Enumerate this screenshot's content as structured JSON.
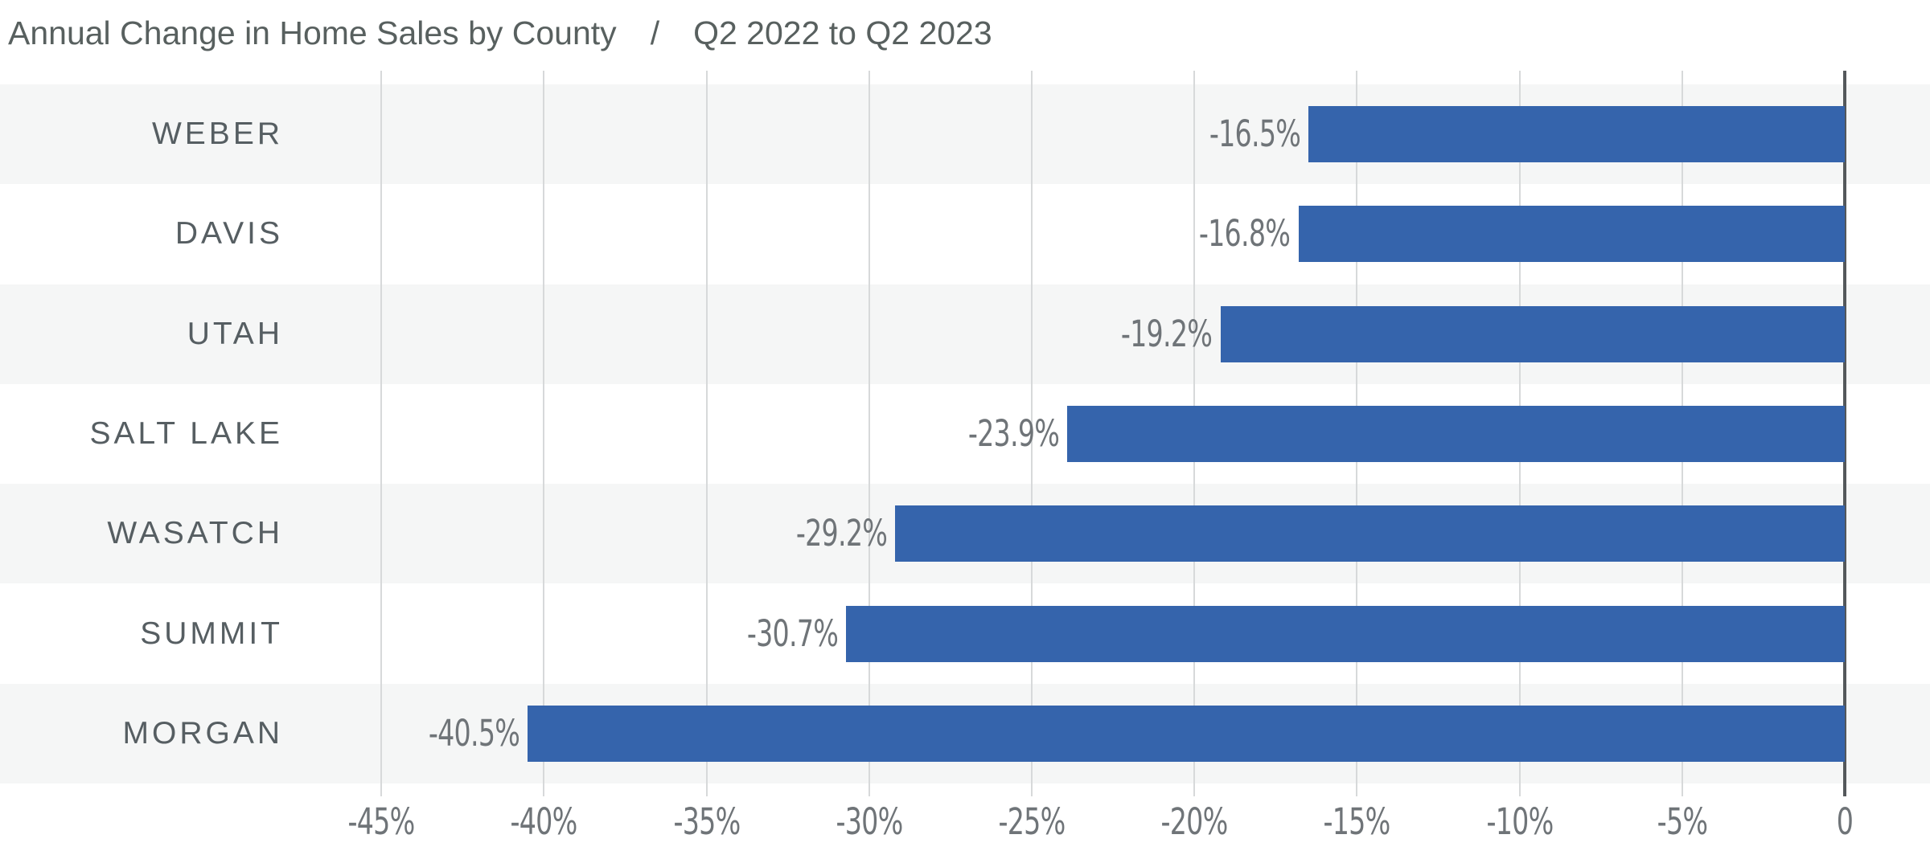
{
  "title": {
    "main": "Annual Change in Home Sales by County",
    "separator": "/",
    "subtitle": "Q2 2022 to Q2 2023"
  },
  "chart_data": {
    "type": "bar",
    "orientation": "horizontal",
    "title": "Annual Change in Home Sales by County / Q2 2022 to Q2 2023",
    "categories": [
      "WEBER",
      "DAVIS",
      "UTAH",
      "SALT LAKE",
      "WASATCH",
      "SUMMIT",
      "MORGAN"
    ],
    "values": [
      -16.5,
      -16.8,
      -19.2,
      -23.9,
      -29.2,
      -30.7,
      -40.5
    ],
    "value_labels": [
      "-16.5%",
      "-16.8%",
      "-19.2%",
      "-23.9%",
      "-29.2%",
      "-30.7%",
      "-40.5%"
    ],
    "xlabel": "",
    "ylabel": "",
    "xlim": [
      -47.5,
      0
    ],
    "x_ticks": [
      {
        "value": -45,
        "label": "-45%"
      },
      {
        "value": -40,
        "label": "-40%"
      },
      {
        "value": -35,
        "label": "-35%"
      },
      {
        "value": -30,
        "label": "-30%"
      },
      {
        "value": -25,
        "label": "-25%"
      },
      {
        "value": -20,
        "label": "-20%"
      },
      {
        "value": -15,
        "label": "-15%"
      },
      {
        "value": -10,
        "label": "-10%"
      },
      {
        "value": -5,
        "label": "-5%"
      },
      {
        "value": 0,
        "label": "0"
      }
    ],
    "grid": "vertical-gridlines-on",
    "legend": "none",
    "row_striping": "alternating, first row shaded",
    "colors": {
      "bar": "#3564ac",
      "row_stripe": "#f5f6f6",
      "row_alt": "#ffffff",
      "gridline": "#d7d9da",
      "axis_line": "#54585b",
      "title_text": "#58605f",
      "category_text": "#565e62",
      "value_text": "#6f7478",
      "background": "#ffffff"
    }
  }
}
